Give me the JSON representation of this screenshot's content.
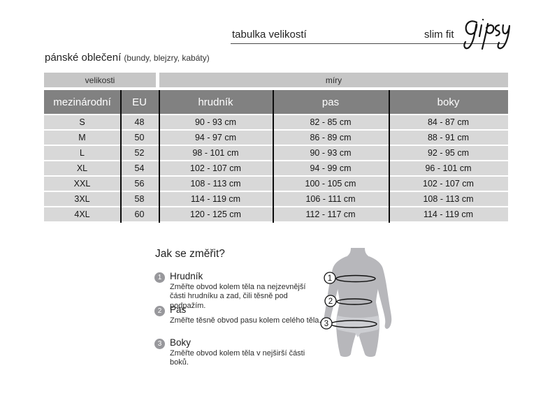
{
  "header": {
    "title": "tabulka velikostí",
    "fit_label": "slim fit",
    "brand": "gipsy"
  },
  "category": {
    "title": "pánské oblečení",
    "subtitle": "(bundy, blejzry, kabáty)"
  },
  "size_table": {
    "group_headers": [
      "velikosti",
      "míry"
    ],
    "columns": [
      "mezinárodní",
      "EU",
      "hrudník",
      "pas",
      "boky"
    ],
    "rows": [
      [
        "S",
        "48",
        "90 - 93 cm",
        "82 - 85 cm",
        "84 - 87 cm"
      ],
      [
        "M",
        "50",
        "94 - 97 cm",
        "86 - 89 cm",
        "88 - 91 cm"
      ],
      [
        "L",
        "52",
        "98 - 101 cm",
        "90 - 93 cm",
        "92 - 95 cm"
      ],
      [
        "XL",
        "54",
        "102 - 107 cm",
        "94 - 99 cm",
        "96 - 101 cm"
      ],
      [
        "XXL",
        "56",
        "108 - 113 cm",
        "100 - 105 cm",
        "102 - 107 cm"
      ],
      [
        "3XL",
        "58",
        "114 - 119 cm",
        "106 - 111 cm",
        "108 - 113 cm"
      ],
      [
        "4XL",
        "60",
        "120 - 125 cm",
        "112 - 117 cm",
        "114 - 119 cm"
      ]
    ]
  },
  "measure_guide": {
    "title": "Jak se změřit?",
    "steps": [
      {
        "number": "1",
        "label": "Hrudník",
        "description": "Změřte obvod kolem těla na nejzevnější části hrudníku a zad, čili těsně pod podpažím."
      },
      {
        "number": "2",
        "label": "Pas",
        "description": "Změřte těsně obvod pasu kolem celého těla."
      },
      {
        "number": "3",
        "label": "Boky",
        "description": "Změřte obvod kolem těla v nejširší části boků."
      }
    ]
  },
  "colors": {
    "group_header_bg": "#c6c6c6",
    "column_header_bg": "#818181",
    "row_bg": "#d8d8d8",
    "column_line": "#0d0d0d",
    "figure_body": "#b7b7bb",
    "figure_briefs": "#cdced2"
  }
}
